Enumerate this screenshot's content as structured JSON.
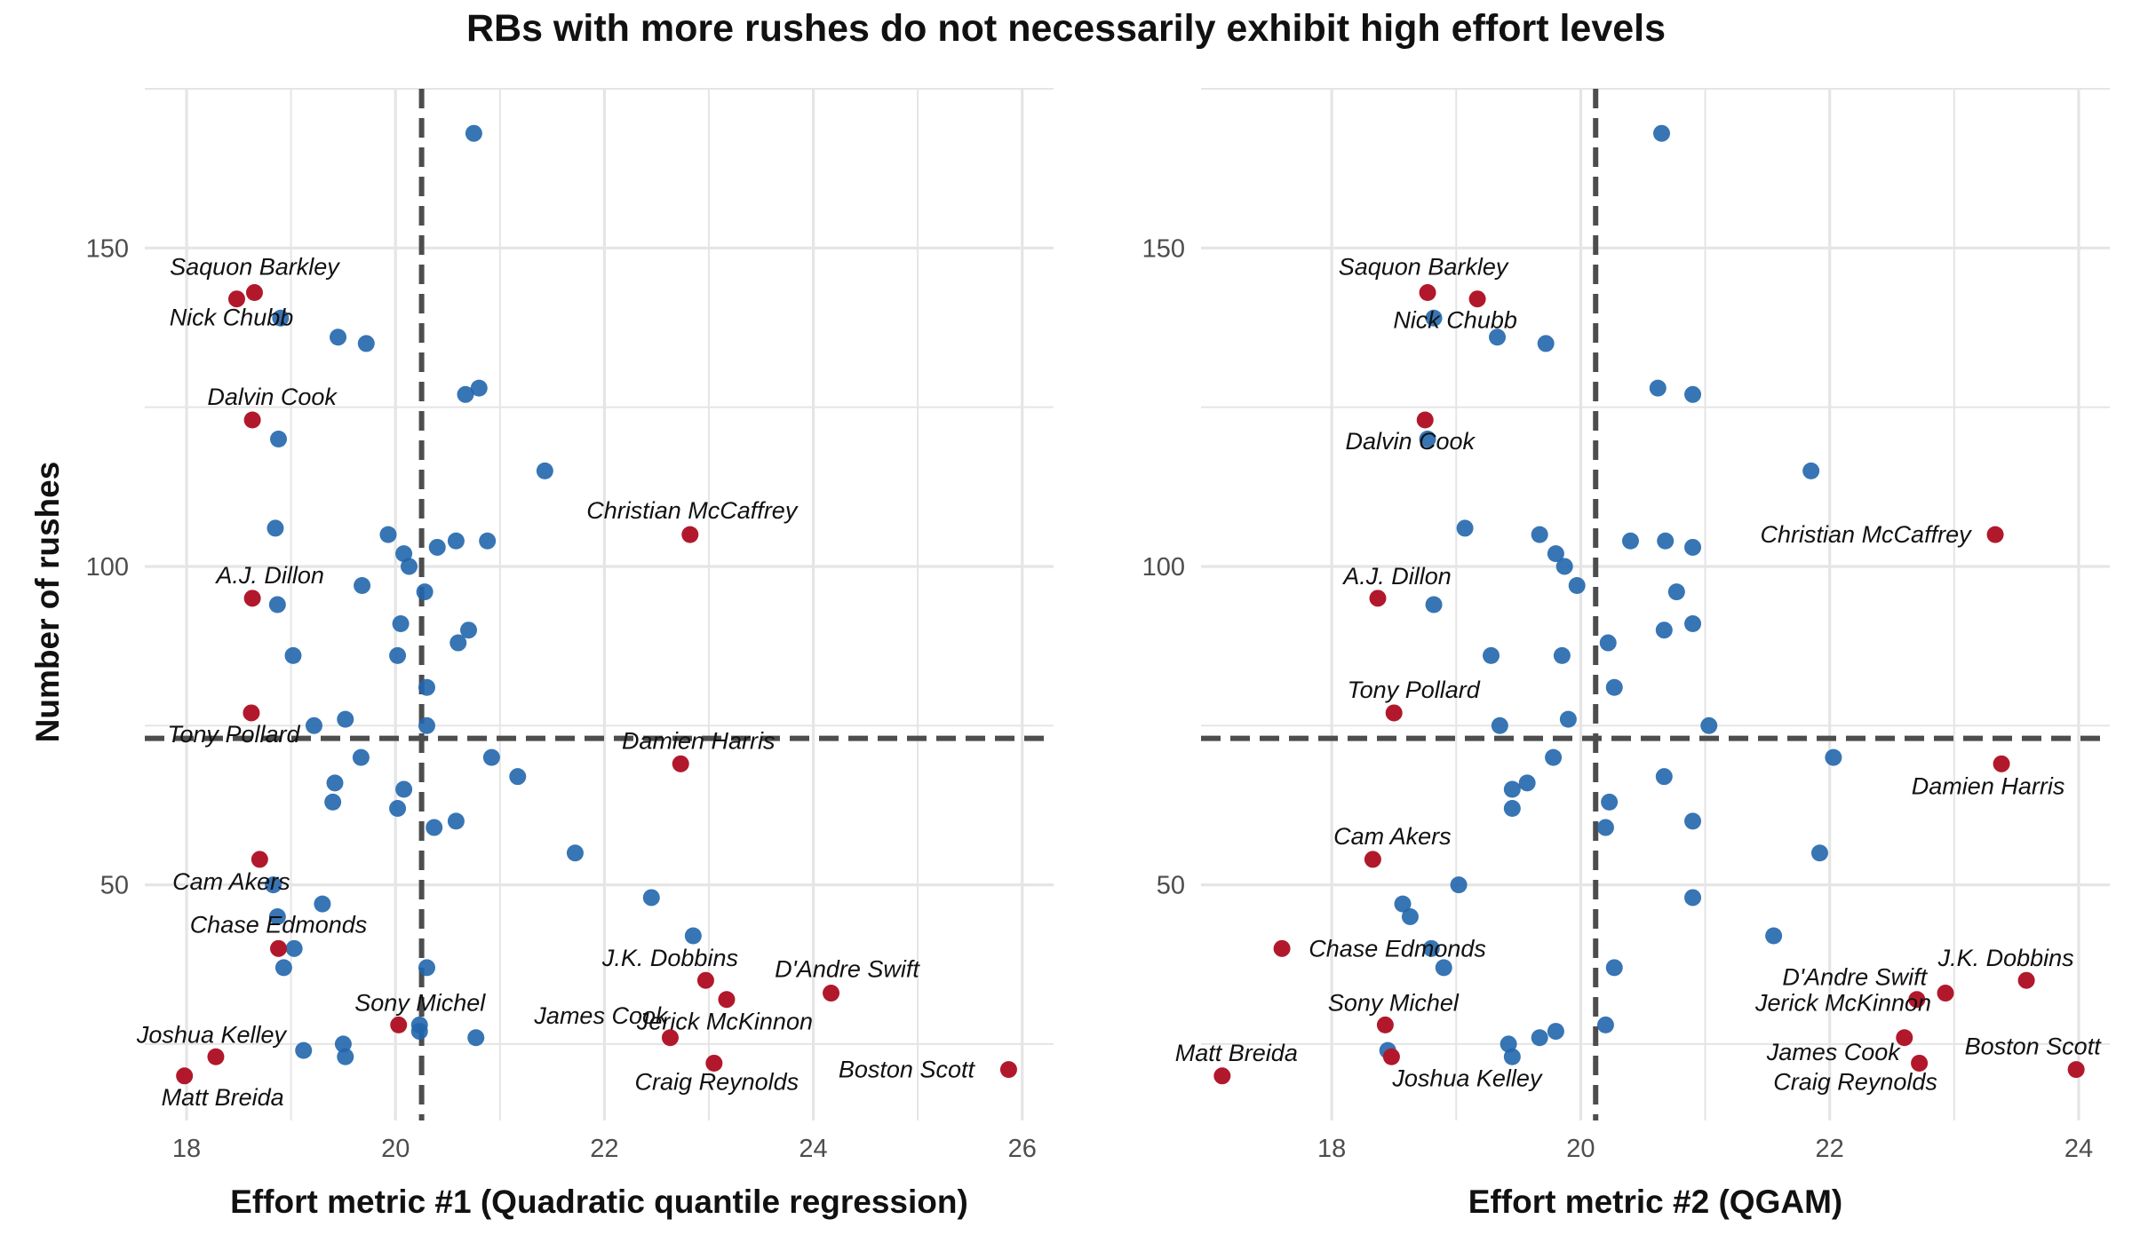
{
  "title": "RBs with more rushes do not necessarily exhibit high effort levels",
  "colors": {
    "highlight": "#b2182b",
    "other": "#2166ac",
    "grid": "#e5e5e5",
    "refline": "#4d4d4d"
  },
  "chart_data": [
    {
      "type": "scatter",
      "xlabel": "Effort metric #1 (Quadratic quantile regression)",
      "ylabel": "Number of rushes",
      "xlim": [
        17.6,
        26.3
      ],
      "ylim": [
        13,
        175
      ],
      "xticks": [
        18,
        20,
        22,
        24,
        26
      ],
      "yticks": [
        50,
        100,
        150
      ],
      "grid": true,
      "vline": 20.25,
      "hline": 73,
      "series": [
        {
          "group": "highlighted",
          "points": [
            {
              "label": "Saquon Barkley",
              "x": 18.65,
              "y": 143
            },
            {
              "label": "Nick Chubb",
              "x": 18.48,
              "y": 142
            },
            {
              "label": "Dalvin Cook",
              "x": 18.63,
              "y": 123
            },
            {
              "label": "Christian McCaffrey",
              "x": 22.82,
              "y": 105
            },
            {
              "label": "A.J. Dillon",
              "x": 18.63,
              "y": 95
            },
            {
              "label": "Tony Pollard",
              "x": 18.62,
              "y": 77
            },
            {
              "label": "Damien Harris",
              "x": 22.73,
              "y": 69
            },
            {
              "label": "Cam Akers",
              "x": 18.7,
              "y": 54
            },
            {
              "label": "Chase Edmonds",
              "x": 18.88,
              "y": 40
            },
            {
              "label": "J.K. Dobbins",
              "x": 22.97,
              "y": 35
            },
            {
              "label": "D'Andre Swift",
              "x": 24.17,
              "y": 33
            },
            {
              "label": "Jerick McKinnon",
              "x": 23.17,
              "y": 32
            },
            {
              "label": "Sony Michel",
              "x": 20.03,
              "y": 28
            },
            {
              "label": "James Cook",
              "x": 22.63,
              "y": 26
            },
            {
              "label": "Joshua Kelley",
              "x": 18.28,
              "y": 23
            },
            {
              "label": "Craig Reynolds",
              "x": 23.05,
              "y": 22
            },
            {
              "label": "Matt Breida",
              "x": 17.98,
              "y": 20
            },
            {
              "label": "Boston Scott",
              "x": 25.87,
              "y": 21
            }
          ]
        },
        {
          "group": "other",
          "points": [
            {
              "x": 20.75,
              "y": 168
            },
            {
              "x": 18.9,
              "y": 139
            },
            {
              "x": 19.45,
              "y": 136
            },
            {
              "x": 19.72,
              "y": 135
            },
            {
              "x": 20.8,
              "y": 128
            },
            {
              "x": 20.67,
              "y": 127
            },
            {
              "x": 18.88,
              "y": 120
            },
            {
              "x": 21.43,
              "y": 115
            },
            {
              "x": 18.85,
              "y": 106
            },
            {
              "x": 19.93,
              "y": 105
            },
            {
              "x": 20.58,
              "y": 104
            },
            {
              "x": 20.88,
              "y": 104
            },
            {
              "x": 20.4,
              "y": 103
            },
            {
              "x": 20.08,
              "y": 102
            },
            {
              "x": 20.13,
              "y": 100
            },
            {
              "x": 19.68,
              "y": 97
            },
            {
              "x": 20.28,
              "y": 96
            },
            {
              "x": 18.87,
              "y": 94
            },
            {
              "x": 20.05,
              "y": 91
            },
            {
              "x": 20.7,
              "y": 90
            },
            {
              "x": 20.6,
              "y": 88
            },
            {
              "x": 19.02,
              "y": 86
            },
            {
              "x": 20.02,
              "y": 86
            },
            {
              "x": 20.3,
              "y": 81
            },
            {
              "x": 19.52,
              "y": 76
            },
            {
              "x": 19.22,
              "y": 75
            },
            {
              "x": 20.3,
              "y": 75
            },
            {
              "x": 19.67,
              "y": 70
            },
            {
              "x": 20.92,
              "y": 70
            },
            {
              "x": 21.17,
              "y": 67
            },
            {
              "x": 19.42,
              "y": 66
            },
            {
              "x": 20.08,
              "y": 65
            },
            {
              "x": 19.4,
              "y": 63
            },
            {
              "x": 20.02,
              "y": 62
            },
            {
              "x": 20.58,
              "y": 60
            },
            {
              "x": 20.37,
              "y": 59
            },
            {
              "x": 21.72,
              "y": 55
            },
            {
              "x": 18.83,
              "y": 50
            },
            {
              "x": 22.45,
              "y": 48
            },
            {
              "x": 19.3,
              "y": 47
            },
            {
              "x": 18.87,
              "y": 45
            },
            {
              "x": 22.85,
              "y": 42
            },
            {
              "x": 19.03,
              "y": 40
            },
            {
              "x": 18.93,
              "y": 37
            },
            {
              "x": 20.3,
              "y": 37
            },
            {
              "x": 20.23,
              "y": 28
            },
            {
              "x": 20.23,
              "y": 27
            },
            {
              "x": 20.77,
              "y": 26
            },
            {
              "x": 19.5,
              "y": 25
            },
            {
              "x": 19.12,
              "y": 24
            },
            {
              "x": 19.52,
              "y": 23
            }
          ]
        }
      ]
    },
    {
      "type": "scatter",
      "xlabel": "Effort metric #2 (QGAM)",
      "ylabel": "",
      "xlim": [
        16.95,
        24.25
      ],
      "ylim": [
        13,
        175
      ],
      "xticks": [
        18,
        20,
        22,
        24
      ],
      "yticks": [
        50,
        100,
        150
      ],
      "grid": true,
      "vline": 20.12,
      "hline": 73,
      "series": [
        {
          "group": "highlighted",
          "points": [
            {
              "label": "Saquon Barkley",
              "x": 18.77,
              "y": 143
            },
            {
              "label": "Nick Chubb",
              "x": 19.17,
              "y": 142
            },
            {
              "label": "Dalvin Cook",
              "x": 18.75,
              "y": 123
            },
            {
              "label": "Christian McCaffrey",
              "x": 23.33,
              "y": 105
            },
            {
              "label": "A.J. Dillon",
              "x": 18.37,
              "y": 95
            },
            {
              "label": "Tony Pollard",
              "x": 18.5,
              "y": 77
            },
            {
              "label": "Damien Harris",
              "x": 23.38,
              "y": 69
            },
            {
              "label": "Cam Akers",
              "x": 18.33,
              "y": 54
            },
            {
              "label": "Chase Edmonds",
              "x": 17.6,
              "y": 40
            },
            {
              "label": "J.K. Dobbins",
              "x": 23.58,
              "y": 35
            },
            {
              "label": "D'Andre Swift",
              "x": 22.7,
              "y": 32
            },
            {
              "label": "Jerick McKinnon",
              "x": 22.93,
              "y": 33
            },
            {
              "label": "Sony Michel",
              "x": 18.43,
              "y": 28
            },
            {
              "label": "James Cook",
              "x": 22.6,
              "y": 26
            },
            {
              "label": "Joshua Kelley",
              "x": 18.48,
              "y": 23
            },
            {
              "label": "Craig Reynolds",
              "x": 22.72,
              "y": 22
            },
            {
              "label": "Matt Breida",
              "x": 17.12,
              "y": 20
            },
            {
              "label": "Boston Scott",
              "x": 23.98,
              "y": 21
            }
          ]
        },
        {
          "group": "other",
          "points": [
            {
              "x": 20.65,
              "y": 168
            },
            {
              "x": 18.82,
              "y": 139
            },
            {
              "x": 19.33,
              "y": 136
            },
            {
              "x": 19.72,
              "y": 135
            },
            {
              "x": 20.62,
              "y": 128
            },
            {
              "x": 20.9,
              "y": 127
            },
            {
              "x": 18.77,
              "y": 120
            },
            {
              "x": 21.85,
              "y": 115
            },
            {
              "x": 19.07,
              "y": 106
            },
            {
              "x": 19.67,
              "y": 105
            },
            {
              "x": 20.4,
              "y": 104
            },
            {
              "x": 20.68,
              "y": 104
            },
            {
              "x": 20.9,
              "y": 103
            },
            {
              "x": 19.8,
              "y": 102
            },
            {
              "x": 19.87,
              "y": 100
            },
            {
              "x": 19.97,
              "y": 97
            },
            {
              "x": 20.77,
              "y": 96
            },
            {
              "x": 18.82,
              "y": 94
            },
            {
              "x": 20.9,
              "y": 91
            },
            {
              "x": 20.67,
              "y": 90
            },
            {
              "x": 20.22,
              "y": 88
            },
            {
              "x": 19.28,
              "y": 86
            },
            {
              "x": 19.85,
              "y": 86
            },
            {
              "x": 20.27,
              "y": 81
            },
            {
              "x": 19.9,
              "y": 76
            },
            {
              "x": 19.35,
              "y": 75
            },
            {
              "x": 21.03,
              "y": 75
            },
            {
              "x": 19.78,
              "y": 70
            },
            {
              "x": 22.03,
              "y": 70
            },
            {
              "x": 20.67,
              "y": 67
            },
            {
              "x": 19.57,
              "y": 66
            },
            {
              "x": 19.45,
              "y": 65
            },
            {
              "x": 20.23,
              "y": 63
            },
            {
              "x": 19.45,
              "y": 62
            },
            {
              "x": 20.9,
              "y": 60
            },
            {
              "x": 20.2,
              "y": 59
            },
            {
              "x": 21.92,
              "y": 55
            },
            {
              "x": 19.02,
              "y": 50
            },
            {
              "x": 20.9,
              "y": 48
            },
            {
              "x": 18.57,
              "y": 47
            },
            {
              "x": 18.63,
              "y": 45
            },
            {
              "x": 21.55,
              "y": 42
            },
            {
              "x": 18.8,
              "y": 40
            },
            {
              "x": 18.9,
              "y": 37
            },
            {
              "x": 20.27,
              "y": 37
            },
            {
              "x": 20.2,
              "y": 28
            },
            {
              "x": 19.8,
              "y": 27
            },
            {
              "x": 19.67,
              "y": 26
            },
            {
              "x": 19.42,
              "y": 25
            },
            {
              "x": 18.45,
              "y": 24
            },
            {
              "x": 19.45,
              "y": 23
            }
          ]
        }
      ]
    }
  ]
}
